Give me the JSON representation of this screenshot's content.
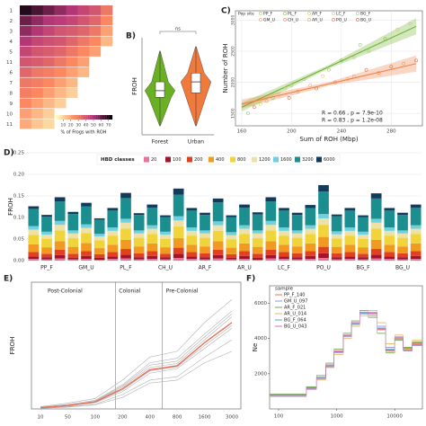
{
  "chart_data": [
    {
      "type": "heatmap",
      "rows": [
        "1",
        "2",
        "3",
        "4",
        "5",
        "11",
        "6",
        "7",
        "8",
        "9",
        "10",
        "11"
      ],
      "values": [
        [
          70,
          65,
          60,
          55,
          50,
          45,
          40,
          30
        ],
        [
          60,
          55,
          50,
          48,
          45,
          40,
          35,
          25
        ],
        [
          55,
          50,
          45,
          40,
          38,
          35,
          30,
          20
        ],
        [
          50,
          45,
          42,
          40,
          35,
          30,
          25,
          15
        ],
        [
          45,
          40,
          38,
          35,
          30,
          25,
          20,
          0
        ],
        [
          40,
          38,
          35,
          30,
          25,
          20,
          0,
          0
        ],
        [
          35,
          30,
          28,
          25,
          20,
          15,
          0,
          0
        ],
        [
          30,
          28,
          25,
          20,
          15,
          0,
          0,
          0
        ],
        [
          28,
          25,
          20,
          15,
          10,
          0,
          0,
          0
        ],
        [
          25,
          20,
          15,
          10,
          0,
          0,
          0,
          0
        ],
        [
          20,
          15,
          10,
          0,
          0,
          0,
          0,
          0
        ],
        [
          18,
          12,
          8,
          0,
          0,
          0,
          0,
          0
        ]
      ],
      "clim": [
        0,
        75
      ],
      "cticks": [
        10,
        20,
        30,
        40,
        50,
        60,
        70
      ],
      "colorbar_label": "% of Frogs with ROH"
    },
    {
      "type": "violin",
      "panel": "B)",
      "ylabel": "FROH",
      "categories": [
        "Forest",
        "Urban"
      ],
      "colors": [
        "#6ab023",
        "#f07a3c"
      ],
      "box": [
        {
          "min": 0.05,
          "q1": 0.115,
          "median": 0.13,
          "q3": 0.15,
          "max": 0.22
        },
        {
          "min": 0.05,
          "q1": 0.125,
          "median": 0.15,
          "q3": 0.17,
          "max": 0.23
        }
      ],
      "ylim": [
        0.03,
        0.25
      ],
      "annotation": "ns"
    },
    {
      "type": "scatter",
      "panel": "C)",
      "xlabel": "Sum of ROH (Mbp)",
      "ylabel": "Number of ROH",
      "legend_title": "Pop site",
      "xlim": [
        155,
        305
      ],
      "ylim": [
        1300,
        3150
      ],
      "xticks": [
        160,
        200,
        240,
        280
      ],
      "yticks": [
        1500,
        2000,
        2500,
        3000
      ],
      "grid": true,
      "series": [
        {
          "name": "PP_F",
          "color": "#a8d26a",
          "x": [
            200,
            230,
            262
          ],
          "values": [
            1950,
            2200,
            2500
          ]
        },
        {
          "name": "GM_U",
          "color": "#f4a582",
          "x": [
            190,
            215,
            250
          ],
          "values": [
            1800,
            1950,
            2100
          ]
        },
        {
          "name": "PL_F",
          "color": "#7fbf4d",
          "x": [
            185,
            240,
            275
          ],
          "values": [
            1750,
            2350,
            2700
          ]
        },
        {
          "name": "CH_U",
          "color": "#f08a5c",
          "x": [
            205,
            235,
            270
          ],
          "values": [
            1850,
            2000,
            2150
          ]
        },
        {
          "name": "AR_F",
          "color": "#d8cc5a",
          "x": [
            175,
            225,
            285
          ],
          "values": [
            1650,
            2100,
            2850
          ]
        },
        {
          "name": "AR_U",
          "color": "#e8a06d",
          "x": [
            180,
            245,
            290
          ],
          "values": [
            1700,
            2050,
            2300
          ]
        },
        {
          "name": "LC_F",
          "color": "#c9c08e",
          "x": [
            195,
            250,
            295
          ],
          "values": [
            1900,
            2400,
            2950
          ]
        },
        {
          "name": "PO_U",
          "color": "#d9774b",
          "x": [
            170,
            220,
            280
          ],
          "values": [
            1600,
            1900,
            2250
          ]
        },
        {
          "name": "BG_F",
          "color": "#93c88a",
          "x": [
            165,
            210,
            255
          ],
          "values": [
            1500,
            2050,
            2600
          ]
        },
        {
          "name": "BG_U",
          "color": "#c8693f",
          "x": [
            198,
            260,
            300
          ],
          "values": [
            1750,
            2200,
            2350
          ]
        }
      ],
      "fits": [
        {
          "color": "#6ab023",
          "x": [
            160,
            300
          ],
          "values": [
            1600,
            2900
          ]
        },
        {
          "color": "#f07a3c",
          "x": [
            160,
            300
          ],
          "values": [
            1650,
            2300
          ]
        }
      ],
      "annotations": [
        {
          "text": "R = 0.66 , p = 7.9e-10",
          "color": "#6ab023"
        },
        {
          "text": "R = 0.83 , p = 1.2e-08",
          "color": "#f07a3c"
        }
      ]
    },
    {
      "type": "stacked_bar",
      "panel": "D)",
      "ylabel": "FROH",
      "legend_title": "HBD classes",
      "ylim": [
        0,
        0.25
      ],
      "yticks": [
        {
          "value": 0,
          "label": "0.00"
        },
        {
          "value": 0.05,
          "label": "0.05"
        },
        {
          "value": 0.1,
          "label": "0.10"
        },
        {
          "value": 0.15,
          "label": "0.15"
        },
        {
          "value": 0.2,
          "label": "0.20"
        },
        {
          "value": 0.25,
          "label": "0.25"
        }
      ],
      "categories": [
        null,
        "PP_F",
        null,
        null,
        "GM_U",
        null,
        null,
        "PL_F",
        null,
        null,
        "CH_U",
        null,
        null,
        "AR_F",
        null,
        null,
        "AR_U",
        null,
        null,
        "LC_F",
        null,
        null,
        "PO_U",
        null,
        null,
        "BG_F",
        null,
        null,
        "BG_U",
        null
      ],
      "series": [
        {
          "name": "20",
          "color": "#e9739a",
          "values": [
            0.004,
            0.003,
            0.005,
            0.003,
            0.004,
            0.002,
            0.004,
            0.005,
            0.003,
            0.004,
            0.003,
            0.006,
            0.004,
            0.003,
            0.005,
            0.003,
            0.004,
            0.002,
            0.005,
            0.004,
            0.003,
            0.004,
            0.006,
            0.003,
            0.004,
            0.003,
            0.005,
            0.004,
            0.003,
            0.004
          ]
        },
        {
          "name": "100",
          "color": "#a3132a",
          "values": [
            0.006,
            0.005,
            0.008,
            0.004,
            0.007,
            0.005,
            0.006,
            0.009,
            0.005,
            0.007,
            0.005,
            0.01,
            0.006,
            0.005,
            0.008,
            0.004,
            0.007,
            0.005,
            0.008,
            0.006,
            0.005,
            0.007,
            0.011,
            0.005,
            0.006,
            0.005,
            0.009,
            0.006,
            0.005,
            0.007
          ]
        },
        {
          "name": "200",
          "color": "#e3401f",
          "values": [
            0.01,
            0.008,
            0.012,
            0.009,
            0.011,
            0.008,
            0.01,
            0.013,
            0.009,
            0.011,
            0.008,
            0.014,
            0.01,
            0.009,
            0.012,
            0.008,
            0.011,
            0.009,
            0.012,
            0.01,
            0.009,
            0.011,
            0.015,
            0.009,
            0.01,
            0.008,
            0.013,
            0.01,
            0.009,
            0.011
          ]
        },
        {
          "name": "400",
          "color": "#f29a1f",
          "values": [
            0.018,
            0.015,
            0.02,
            0.016,
            0.019,
            0.014,
            0.017,
            0.021,
            0.016,
            0.018,
            0.015,
            0.022,
            0.017,
            0.016,
            0.02,
            0.015,
            0.018,
            0.016,
            0.02,
            0.017,
            0.016,
            0.018,
            0.023,
            0.015,
            0.017,
            0.015,
            0.021,
            0.017,
            0.016,
            0.018
          ]
        },
        {
          "name": "800",
          "color": "#f1d43a",
          "values": [
            0.022,
            0.019,
            0.025,
            0.02,
            0.023,
            0.018,
            0.021,
            0.026,
            0.02,
            0.022,
            0.019,
            0.027,
            0.021,
            0.02,
            0.024,
            0.019,
            0.022,
            0.02,
            0.025,
            0.021,
            0.02,
            0.022,
            0.028,
            0.019,
            0.021,
            0.019,
            0.026,
            0.021,
            0.02,
            0.022
          ]
        },
        {
          "name": "1200",
          "color": "#ede1a8",
          "values": [
            0.012,
            0.01,
            0.013,
            0.011,
            0.012,
            0.009,
            0.011,
            0.014,
            0.01,
            0.012,
            0.01,
            0.014,
            0.011,
            0.01,
            0.013,
            0.01,
            0.012,
            0.011,
            0.013,
            0.011,
            0.01,
            0.012,
            0.015,
            0.01,
            0.011,
            0.01,
            0.014,
            0.011,
            0.01,
            0.012
          ]
        },
        {
          "name": "1600",
          "color": "#6fd0df",
          "values": [
            0.008,
            0.007,
            0.009,
            0.007,
            0.008,
            0.006,
            0.008,
            0.009,
            0.007,
            0.008,
            0.007,
            0.01,
            0.008,
            0.007,
            0.009,
            0.007,
            0.008,
            0.007,
            0.009,
            0.008,
            0.007,
            0.008,
            0.01,
            0.007,
            0.008,
            0.007,
            0.009,
            0.008,
            0.007,
            0.008
          ]
        },
        {
          "name": "3200",
          "color": "#1b8e8f",
          "values": [
            0.04,
            0.035,
            0.045,
            0.038,
            0.042,
            0.033,
            0.039,
            0.048,
            0.036,
            0.041,
            0.034,
            0.05,
            0.039,
            0.036,
            0.044,
            0.035,
            0.041,
            0.037,
            0.045,
            0.039,
            0.036,
            0.04,
            0.052,
            0.035,
            0.039,
            0.034,
            0.047,
            0.039,
            0.036,
            0.041
          ]
        },
        {
          "name": "6000",
          "color": "#123a5c",
          "values": [
            0.006,
            0.004,
            0.01,
            0.005,
            0.008,
            0.003,
            0.006,
            0.012,
            0.004,
            0.007,
            0.004,
            0.014,
            0.006,
            0.005,
            0.009,
            0.004,
            0.007,
            0.005,
            0.01,
            0.006,
            0.005,
            0.007,
            0.015,
            0.004,
            0.006,
            0.004,
            0.012,
            0.006,
            0.005,
            0.007
          ]
        }
      ]
    },
    {
      "type": "line",
      "panel": "E)",
      "ylabel": "FROH",
      "categories": [
        "10",
        "50",
        "100",
        "200",
        "400",
        "800",
        "1600",
        "3000"
      ],
      "ylim": [
        0,
        0.22
      ],
      "annotations": [
        "Post-Colonial",
        "Colonial",
        "Pre-Colonial"
      ],
      "series": [
        {
          "color": "#b0b0b0",
          "values": [
            0.001,
            0.004,
            0.008,
            0.025,
            0.05,
            0.056,
            0.09,
            0.12
          ]
        },
        {
          "color": "#b0b0b0",
          "values": [
            0.002,
            0.005,
            0.011,
            0.03,
            0.062,
            0.07,
            0.105,
            0.14
          ]
        },
        {
          "color": "#b0b0b0",
          "values": [
            0.003,
            0.008,
            0.015,
            0.042,
            0.08,
            0.088,
            0.13,
            0.17
          ]
        },
        {
          "color": "#b0b0b0",
          "values": [
            0.004,
            0.01,
            0.018,
            0.05,
            0.09,
            0.1,
            0.15,
            0.19
          ]
        },
        {
          "color": "#b0b0b0",
          "values": [
            0.001,
            0.003,
            0.007,
            0.02,
            0.045,
            0.05,
            0.08,
            0.1
          ]
        },
        {
          "color": "#b0b0b0",
          "values": [
            0.002,
            0.007,
            0.013,
            0.038,
            0.072,
            0.079,
            0.12,
            0.16
          ]
        },
        {
          "color": "#b0b0b0",
          "values": [
            0.003,
            0.006,
            0.012,
            0.033,
            0.066,
            0.073,
            0.11,
            0.145
          ]
        },
        {
          "color": "#b0b0b0",
          "values": [
            0.002,
            0.006,
            0.014,
            0.04,
            0.076,
            0.083,
            0.125,
            0.165
          ]
        },
        {
          "color": "#e8705a",
          "values": [
            0.002,
            0.006,
            0.012,
            0.035,
            0.068,
            0.075,
            0.115,
            0.15
          ]
        }
      ]
    },
    {
      "type": "step",
      "panel": "F)",
      "ylabel": "Ne",
      "legend_title": "sample",
      "x": [
        70,
        300,
        450,
        650,
        900,
        1300,
        1800,
        2500,
        3500,
        5000,
        7000,
        10000,
        14000,
        20000
      ],
      "xlim": [
        70,
        30000
      ],
      "xticks": [
        100,
        1000,
        10000
      ],
      "log_x": true,
      "ylim": [
        0,
        7000
      ],
      "yticks": [
        2000,
        4000,
        6000
      ],
      "series": [
        {
          "name": "PP_F_140",
          "color": "#e8705a",
          "values": [
            800,
            1200,
            1800,
            2500,
            3300,
            4200,
            4900,
            5500,
            5300,
            4500,
            3300,
            4000,
            3400,
            3700
          ]
        },
        {
          "name": "GM_U_097",
          "color": "#9c8fd6",
          "values": [
            750,
            1150,
            1700,
            2400,
            3200,
            4100,
            4800,
            5400,
            5500,
            4700,
            3500,
            4100,
            3300,
            3600
          ]
        },
        {
          "name": "AR_F_021",
          "color": "#6aa84f",
          "values": [
            850,
            1250,
            1900,
            2600,
            3400,
            4300,
            5000,
            5600,
            5200,
            4300,
            3200,
            3900,
            3500,
            3800
          ]
        },
        {
          "name": "AR_U_014",
          "color": "#f0b25a",
          "values": [
            700,
            1100,
            1650,
            2350,
            3100,
            4000,
            4700,
            5300,
            5600,
            4900,
            3700,
            4200,
            3400,
            3900
          ]
        },
        {
          "name": "BG_F_064",
          "color": "#5aa0d8",
          "values": [
            800,
            1200,
            1750,
            2450,
            3250,
            4150,
            4850,
            5450,
            5400,
            4600,
            3400,
            4050,
            3350,
            3650
          ]
        },
        {
          "name": "BG_U_043",
          "color": "#d96fb0",
          "values": [
            780,
            1180,
            1800,
            2500,
            3300,
            4200,
            4900,
            5500,
            5450,
            4550,
            3350,
            3950,
            3450,
            3750
          ]
        }
      ]
    }
  ]
}
